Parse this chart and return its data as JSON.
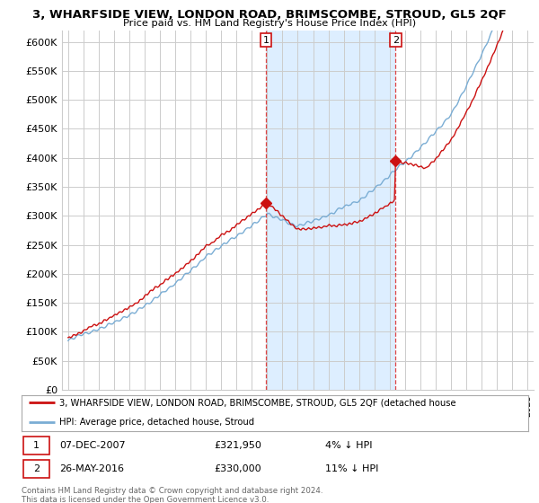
{
  "title": "3, WHARFSIDE VIEW, LONDON ROAD, BRIMSCOMBE, STROUD, GL5 2QF",
  "subtitle": "Price paid vs. HM Land Registry's House Price Index (HPI)",
  "ylabel_ticks": [
    "£0",
    "£50K",
    "£100K",
    "£150K",
    "£200K",
    "£250K",
    "£300K",
    "£350K",
    "£400K",
    "£450K",
    "£500K",
    "£550K",
    "£600K"
  ],
  "ylim": [
    0,
    620000
  ],
  "ytick_vals": [
    0,
    50000,
    100000,
    150000,
    200000,
    250000,
    300000,
    350000,
    400000,
    450000,
    500000,
    550000,
    600000
  ],
  "hpi_color": "#7aadd4",
  "price_color": "#cc1111",
  "shade_color": "#ddeeff",
  "vline_color": "#dd4444",
  "purchase1_date": 2007.92,
  "purchase1_price": 321950,
  "purchase2_date": 2016.38,
  "purchase2_price": 330000,
  "legend_line1": "3, WHARFSIDE VIEW, LONDON ROAD, BRIMSCOMBE, STROUD, GL5 2QF (detached house",
  "legend_line2": "HPI: Average price, detached house, Stroud",
  "ann1_date": "07-DEC-2007",
  "ann1_price": "£321,950",
  "ann1_pct": "4% ↓ HPI",
  "ann2_date": "26-MAY-2016",
  "ann2_price": "£330,000",
  "ann2_pct": "11% ↓ HPI",
  "footer": "Contains HM Land Registry data © Crown copyright and database right 2024.\nThis data is licensed under the Open Government Licence v3.0.",
  "background_color": "#ffffff",
  "grid_color": "#cccccc"
}
